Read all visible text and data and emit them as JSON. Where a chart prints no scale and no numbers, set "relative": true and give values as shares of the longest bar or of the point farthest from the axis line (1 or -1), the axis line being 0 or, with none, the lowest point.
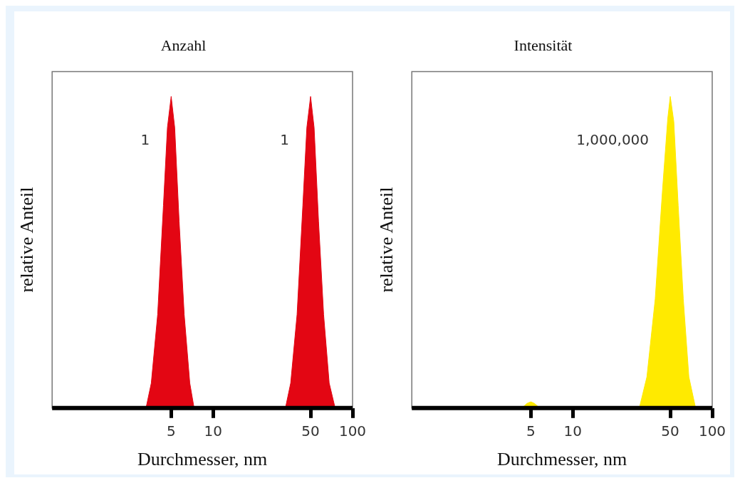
{
  "chart_data": [
    {
      "type": "area",
      "title": "Anzahl",
      "xlabel": "Durchmesser, nm",
      "ylabel": "relative Anteil",
      "relative": true,
      "log": "x",
      "grid": false,
      "color": "#e30613",
      "xlim": [
        0.7,
        100
      ],
      "xticks": [
        5,
        10,
        50,
        100
      ],
      "x": [
        3.3,
        3.6,
        4,
        4.4,
        4.7,
        5,
        5.3,
        5.7,
        6.2,
        6.8,
        7.3,
        33,
        36,
        40,
        44,
        47,
        50,
        53,
        57,
        62,
        68,
        75
      ],
      "values": [
        0,
        0.08,
        0.3,
        0.65,
        0.9,
        1,
        0.9,
        0.6,
        0.3,
        0.08,
        0,
        0,
        0.08,
        0.3,
        0.65,
        0.9,
        1,
        0.9,
        0.6,
        0.3,
        0.08,
        0
      ],
      "annotations": [
        "1",
        "1"
      ]
    },
    {
      "type": "area",
      "title": "Intensität",
      "xlabel": "Durchmesser, nm",
      "ylabel": "relative Anteil",
      "relative": true,
      "log": "x",
      "grid": false,
      "color": "#ffea00",
      "xlim": [
        0.7,
        100
      ],
      "xticks": [
        5,
        10,
        50,
        100
      ],
      "x": [
        4.3,
        4.7,
        5,
        5.3,
        5.8,
        30,
        34,
        39,
        44,
        48,
        50,
        53,
        57,
        62,
        68,
        76
      ],
      "values": [
        0,
        0.015,
        0.02,
        0.015,
        0,
        0,
        0.1,
        0.35,
        0.7,
        0.93,
        1,
        0.92,
        0.65,
        0.35,
        0.1,
        0
      ],
      "annotations": [
        "1,000,000"
      ]
    }
  ]
}
